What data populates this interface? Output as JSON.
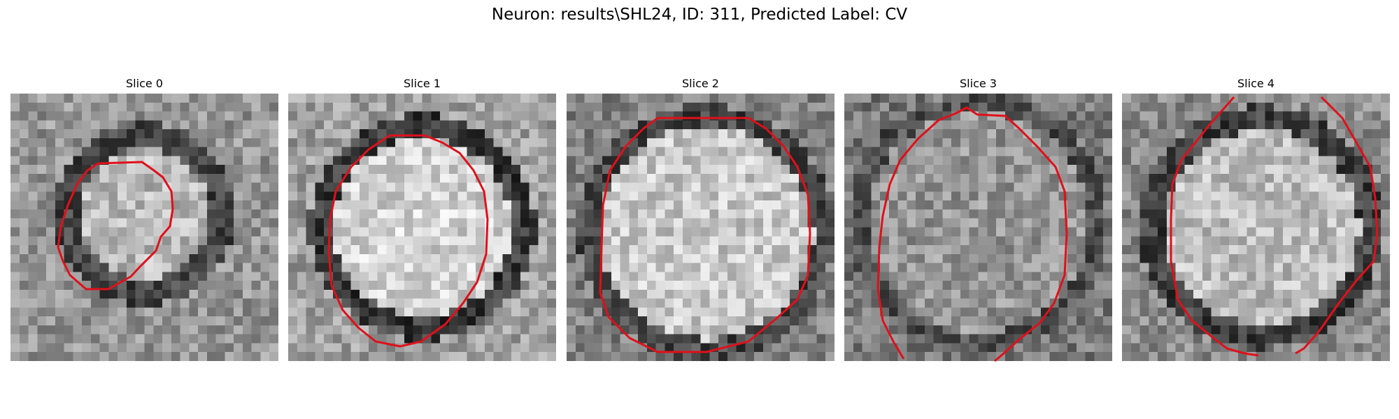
{
  "figure": {
    "title": "Neuron: results\\SHL24, ID: 311, Predicted Label: CV",
    "colormap": "gray",
    "contour_color": "#e0101a"
  },
  "panels": [
    {
      "title": "Slice 0"
    },
    {
      "title": "Slice 1"
    },
    {
      "title": "Slice 2"
    },
    {
      "title": "Slice 3"
    },
    {
      "title": "Slice 4"
    }
  ]
}
